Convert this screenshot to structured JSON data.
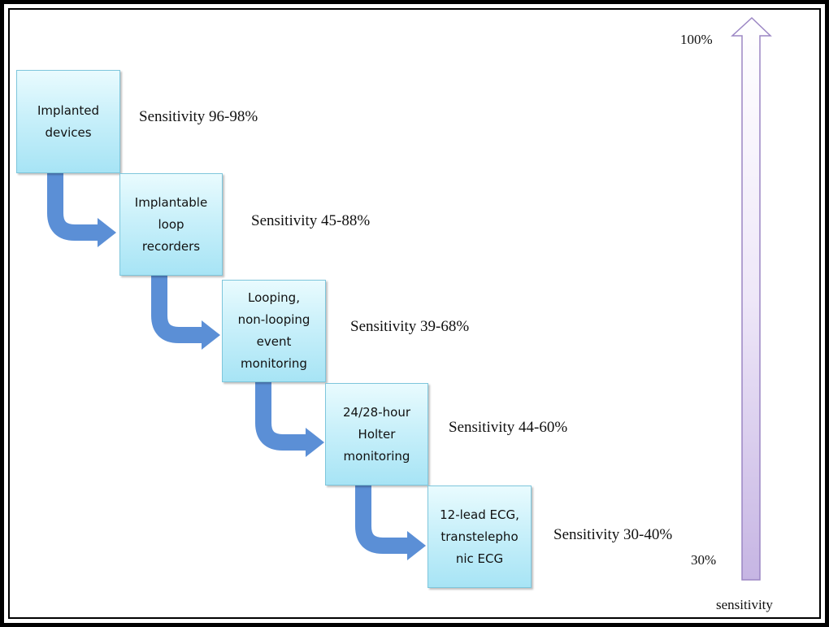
{
  "steps": [
    {
      "box_text": "Implanted\ndevices",
      "sensitivity": "Sensitivity  96-98%"
    },
    {
      "box_text": "Implantable\nloop\nrecorders",
      "sensitivity": "Sensitivity  45-88%"
    },
    {
      "box_text": "Looping,\nnon-looping\nevent\nmonitoring",
      "sensitivity": "Sensitivity  39-68%"
    },
    {
      "box_text": "24/28-hour\nHolter\nmonitoring",
      "sensitivity": "Sensitivity  44-60%"
    },
    {
      "box_text": "12-lead ECG,\ntranstelepho\nnic ECG",
      "sensitivity": "Sensitivity  30-40%"
    }
  ],
  "scale": {
    "top_label": "100%",
    "bottom_label": "30%",
    "axis_label": "sensitivity"
  },
  "colors": {
    "box_fill": "#c9f0fa",
    "box_border": "#7ec6dc",
    "connector_arrow": "#5b8fd6",
    "scale_arrow": "#b7a4d8"
  }
}
